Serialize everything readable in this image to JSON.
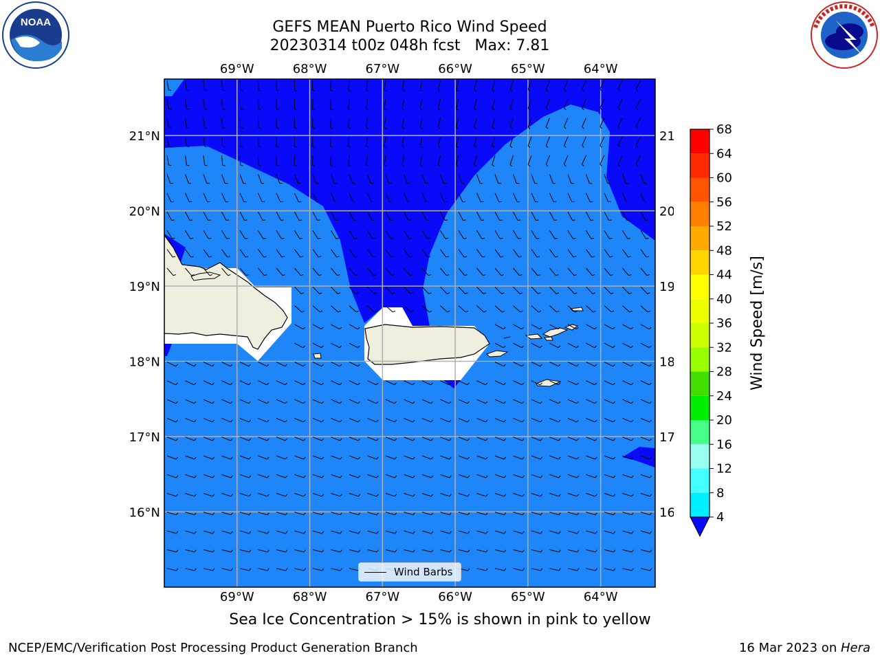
{
  "title": {
    "line1": "GEFS MEAN Puerto Rico Wind Speed",
    "line2": "20230314 t00z 048h fcst   Max: 7.81"
  },
  "logos": {
    "left": {
      "icon": "noaa-logo",
      "text": "NOAA"
    },
    "right": {
      "icon": "nws-logo",
      "text": "NATIONAL WEATHER SERVICE"
    }
  },
  "map": {
    "lon_labels": [
      "69°W",
      "68°W",
      "67°W",
      "66°W",
      "65°W",
      "64°W"
    ],
    "lat_labels": [
      "21°N",
      "20°N",
      "19°N",
      "18°N",
      "17°N",
      "16°N"
    ],
    "lon_range": [
      -70.0,
      -63.25
    ],
    "lat_range": [
      15.0,
      21.75
    ],
    "colors": {
      "below_4": "#0a0afa",
      "range_4_8": "#1e86f8",
      "land": "#efeedf",
      "grid": "#b0b0b0"
    },
    "legend_label": "Wind Barbs"
  },
  "colorbar": {
    "label": "Wind Speed [m/s]",
    "ticks": [
      "68",
      "64",
      "60",
      "56",
      "52",
      "48",
      "44",
      "40",
      "36",
      "32",
      "28",
      "24",
      "20",
      "16",
      "12",
      "8",
      "4"
    ],
    "colors": [
      "#ff0000",
      "#ff2a00",
      "#ff5500",
      "#ff8000",
      "#ffaa00",
      "#ffd500",
      "#ffff00",
      "#eeff00",
      "#ccff00",
      "#99ff00",
      "#44dd00",
      "#00ee00",
      "#44ff88",
      "#99ffee",
      "#44ffff",
      "#00eeff",
      "#1e86f8"
    ],
    "extend_color": "#0a0afa"
  },
  "subtitle": "Sea Ice Concentration > 15% is shown in pink to yellow",
  "footer": {
    "left": "NCEP/EMC/Verification Post Processing Product Generation Branch",
    "right_date": "16 Mar 2023 on ",
    "right_host": "Hera"
  }
}
